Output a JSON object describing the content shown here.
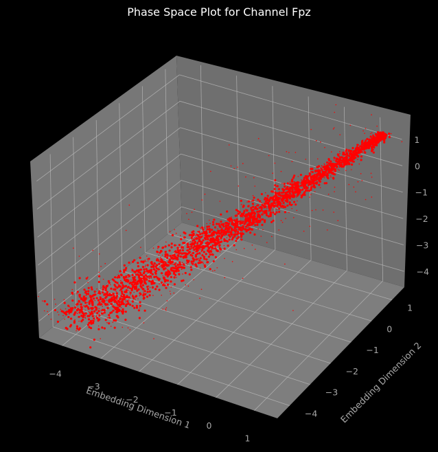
{
  "chart_data": {
    "type": "scatter",
    "title": "Phase Space Plot for Channel Fpz",
    "xlabel": "Embedding Dimension 1",
    "ylabel": "Embedding Dimension 2",
    "zlabel": "",
    "x_ticks": [
      "−4",
      "−3",
      "−2",
      "−1",
      "0",
      "1"
    ],
    "y_ticks": [
      "−4",
      "−3",
      "−2",
      "−1",
      "0",
      "1"
    ],
    "z_ticks": [
      "−4",
      "−3",
      "−2",
      "−1",
      "0",
      "1"
    ],
    "xlim": [
      -4.6,
      1.6
    ],
    "ylim": [
      -4.6,
      1.6
    ],
    "zlim": [
      -4.6,
      1.6
    ],
    "grid": true,
    "series": [
      {
        "color": "#ff0000",
        "description": "dense cloud of red points along the diagonal from (-4,-4,-4) to (1.3,1.3,1.3)",
        "points": [
          [
            -4.0,
            -4.0,
            -4.0
          ],
          [
            -3.5,
            -3.5,
            -3.5
          ],
          [
            -3.0,
            -3.0,
            -3.0
          ],
          [
            -2.5,
            -2.5,
            -2.5
          ],
          [
            -2.0,
            -2.0,
            -2.0
          ],
          [
            -1.5,
            -1.5,
            -1.5
          ],
          [
            -1.0,
            -1.0,
            -1.0
          ],
          [
            -0.5,
            -0.5,
            -0.5
          ],
          [
            0.0,
            0.0,
            0.0
          ],
          [
            0.5,
            0.5,
            0.5
          ],
          [
            1.0,
            1.0,
            1.0
          ],
          [
            1.3,
            1.3,
            1.3
          ]
        ]
      }
    ]
  },
  "colors": {
    "background": "#000000",
    "pane": "#7a7a7a",
    "grid": "#bdbdbd",
    "points": "#ff0000",
    "text": "#a8a8a8"
  }
}
